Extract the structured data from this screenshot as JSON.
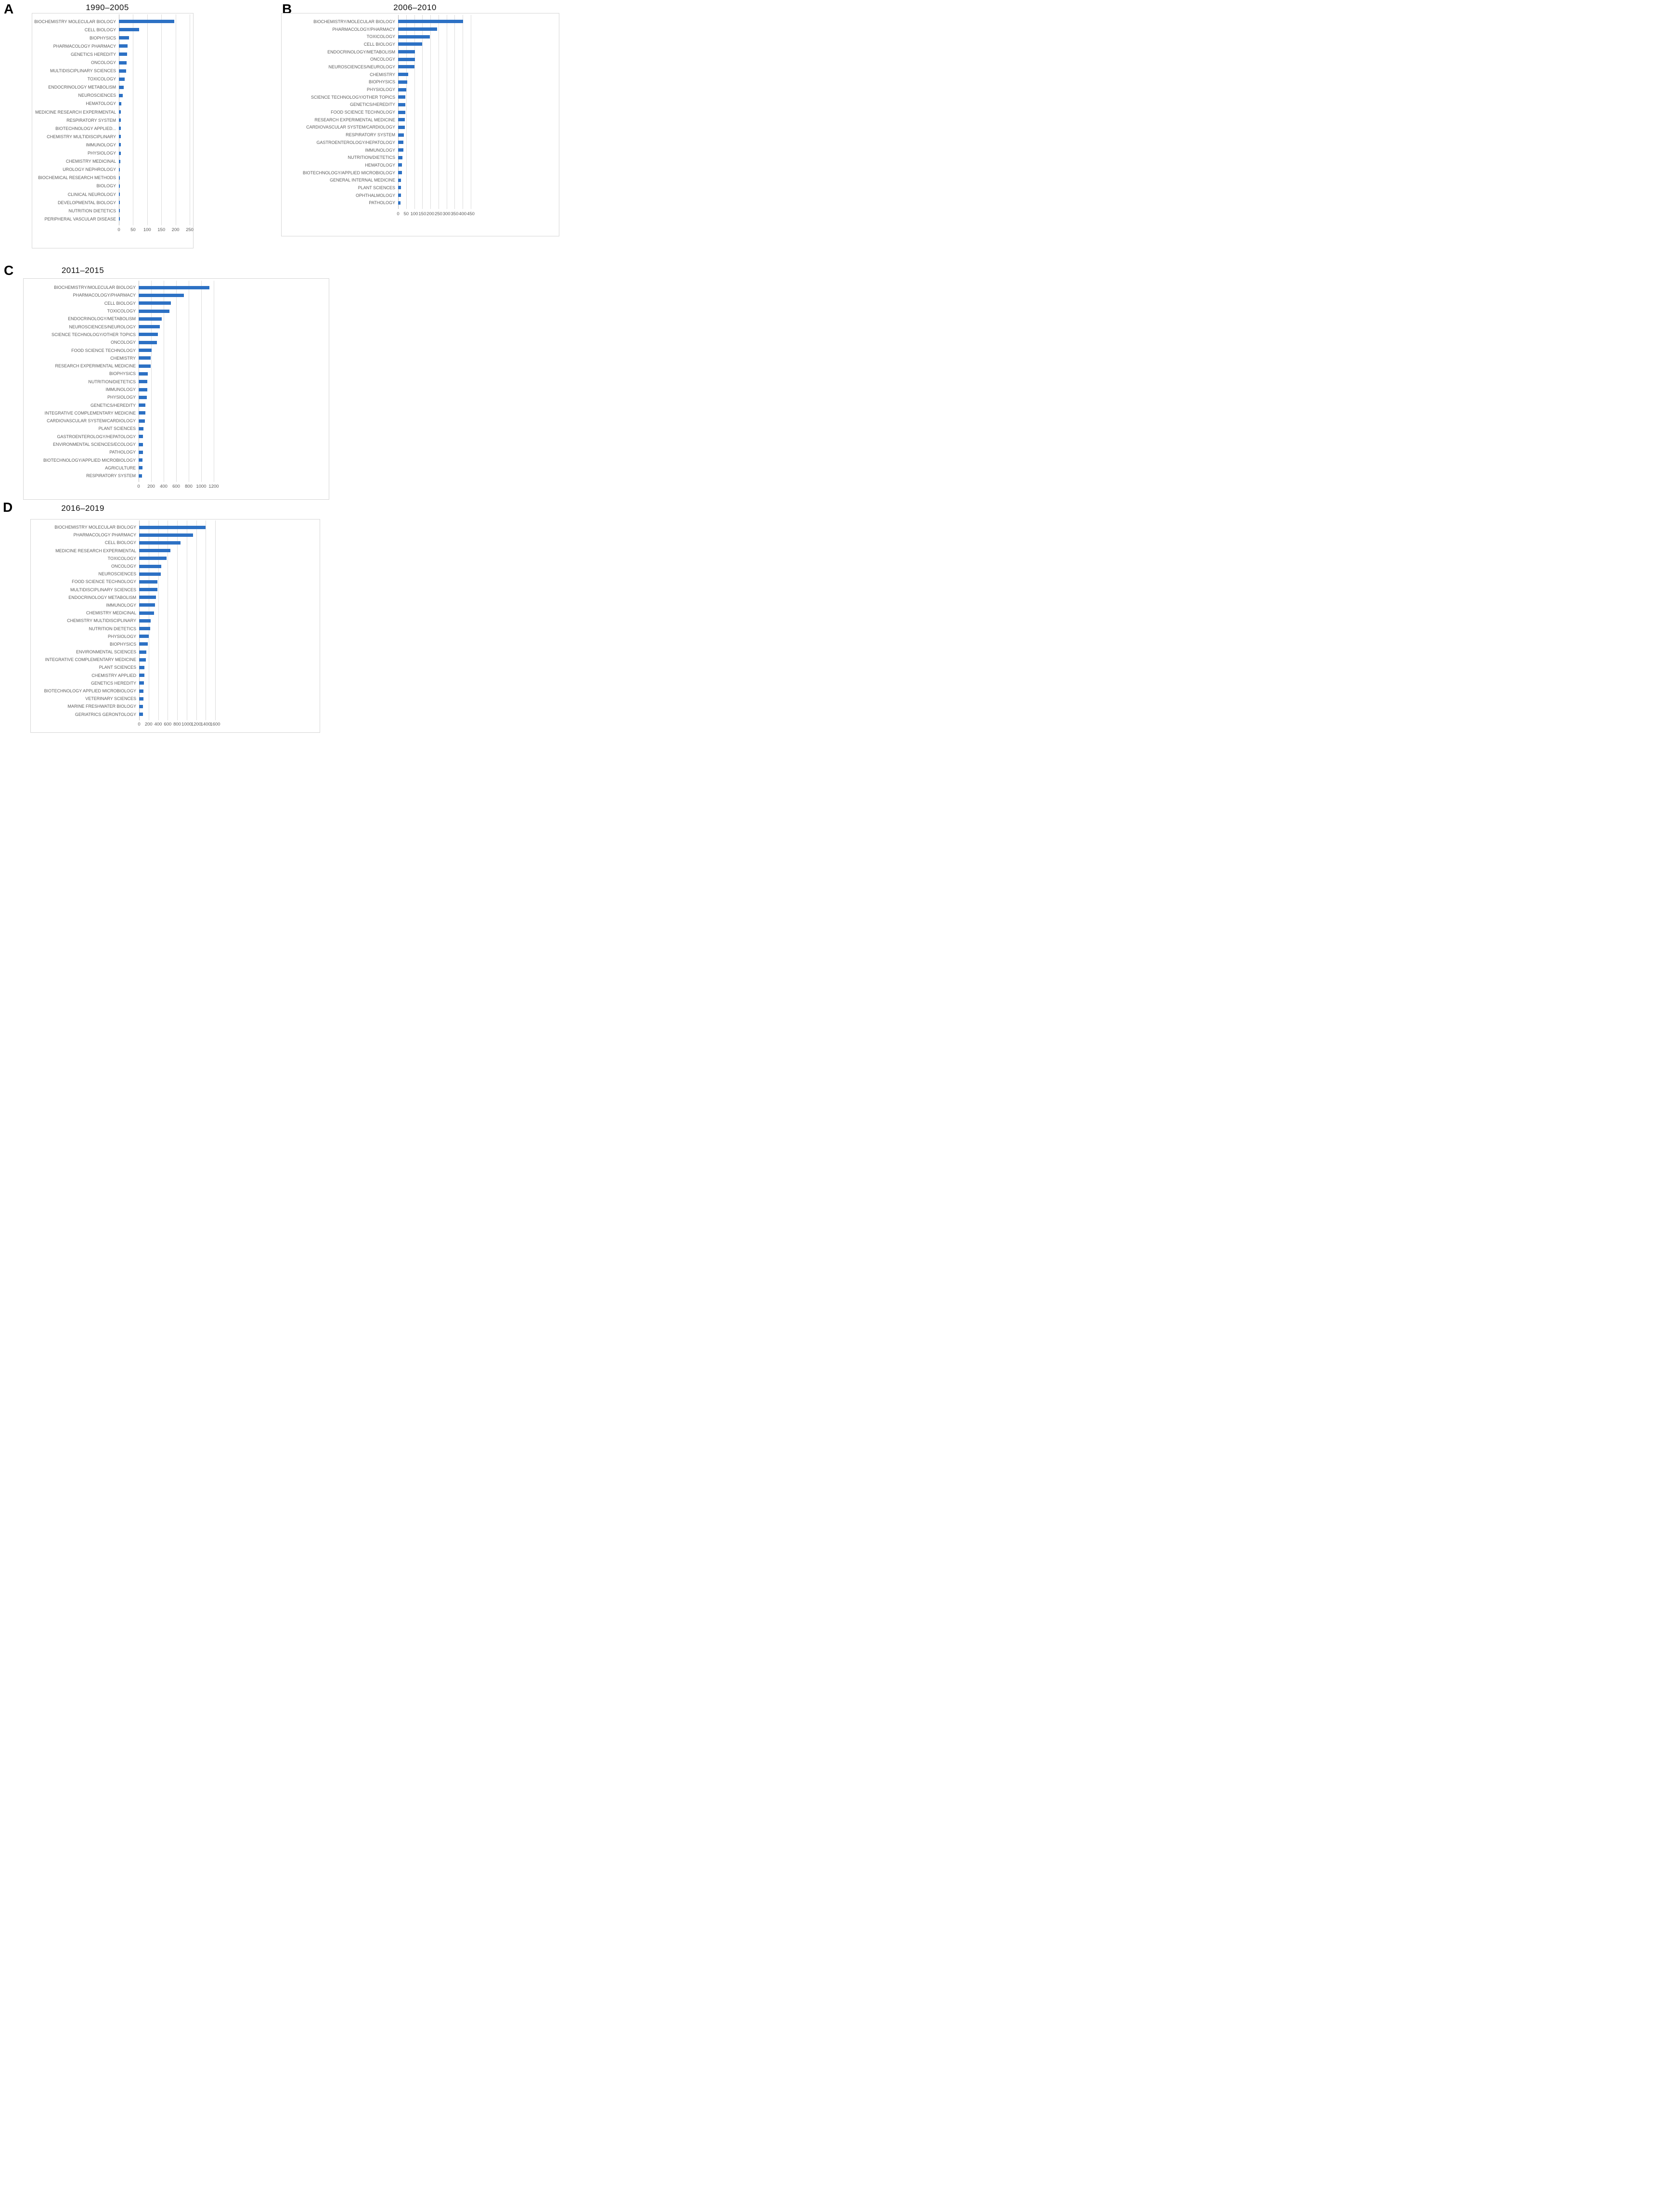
{
  "chart_data": [
    {
      "type": "bar",
      "orientation": "horizontal",
      "panel_label": "A",
      "title": "1990–2005",
      "xlabel": "",
      "ylabel": "",
      "xlim": [
        0,
        250
      ],
      "xticks": [
        0,
        50,
        100,
        150,
        200,
        250
      ],
      "grid": true,
      "legend": "none",
      "bar_color": "#2d71c4",
      "categories": [
        "BIOCHEMISTRY MOLECULAR BIOLOGY",
        "CELL BIOLOGY",
        "BIOPHYSICS",
        "PHARMACOLOGY PHARMACY",
        "GENETICS HEREDITY",
        "ONCOLOGY",
        "MULTIDISCIPLINARY SCIENCES",
        "TOXICOLOGY",
        "ENDOCRINOLOGY METABOLISM",
        "NEUROSCIENCES",
        "HEMATOLOGY",
        "MEDICINE RESEARCH EXPERIMENTAL",
        "RESPIRATORY SYSTEM",
        "BIOTECHNOLOGY APPLIED...",
        "CHEMISTRY MULTIDISCIPLINARY",
        "IMMUNOLOGY",
        "PHYSIOLOGY",
        "CHEMISTRY MEDICINAL",
        "UROLOGY NEPHROLOGY",
        "BIOCHEMICAL RESEARCH METHODS",
        "BIOLOGY",
        "CLINICAL NEUROLOGY",
        "DEVELOPMENTAL BIOLOGY",
        "NUTRITION DIETETICS",
        "PERIPHERAL VASCULAR DISEASE"
      ],
      "values": [
        195,
        72,
        35,
        30,
        29,
        27,
        26,
        20,
        17,
        13,
        8,
        7,
        7,
        6,
        6,
        6,
        6,
        5,
        4,
        3,
        3,
        3,
        3,
        3,
        3
      ]
    },
    {
      "type": "bar",
      "orientation": "horizontal",
      "panel_label": "B",
      "title": "2006–2010",
      "xlabel": "",
      "ylabel": "",
      "xlim": [
        0,
        450
      ],
      "xticks": [
        0,
        50,
        100,
        150,
        200,
        250,
        300,
        350,
        400,
        450
      ],
      "grid": true,
      "legend": "none",
      "bar_color": "#2d71c4",
      "categories": [
        "BIOCHEMISTRY/MOLECULAR BIOLOGY",
        "PHARMACOLOGY/PHARMACY",
        "TOXICOLOGY",
        "CELL BIOLOGY",
        "ENDOCRINOLOGY/METABOLISM",
        "ONCOLOGY",
        "NEUROSCIENCES/NEUROLOGY",
        "CHEMISTRY",
        "BIOPHYSICS",
        "PHYSIOLOGY",
        "SCIENCE TECHNOLOGY/OTHER TOPICS",
        "GENETICS/HEREDITY",
        "FOOD SCIENCE TECHNOLOGY",
        "RESEARCH EXPERIMENTAL MEDICINE",
        "CARDIOVASCULAR SYSTEM/CARDIOLOGY",
        "RESPIRATORY SYSTEM",
        "GASTROENTEROLOGY/HEPATOLOGY",
        "IMMUNOLOGY",
        "NUTRITION/DIETETICS",
        "HEMATOLOGY",
        "BIOTECHNOLOGY/APPLIED MICROBIOLOGY",
        "GENERAL INTERNAL MEDICINE",
        "PLANT SCIENCES",
        "OPHTHALMOLOGY",
        "PATHOLOGY"
      ],
      "values": [
        403,
        240,
        196,
        149,
        104,
        103,
        100,
        62,
        58,
        51,
        46,
        45,
        44,
        42,
        41,
        37,
        34,
        32,
        28,
        25,
        23,
        18,
        17,
        17,
        15
      ]
    },
    {
      "type": "bar",
      "orientation": "horizontal",
      "panel_label": "C",
      "title": "2011–2015",
      "xlabel": "",
      "ylabel": "",
      "xlim": [
        0,
        1200
      ],
      "xticks": [
        0,
        200,
        400,
        600,
        800,
        1000,
        1200
      ],
      "grid": true,
      "legend": "none",
      "bar_color": "#2d71c4",
      "categories": [
        "BIOCHEMISTRY/MOLECULAR BIOLOGY",
        "PHARMACOLOGY/PHARMACY",
        "CELL BIOLOGY",
        "TOXICOLOGY",
        "ENDOCRINOLOGY/METABOLISM",
        "NEUROSCIENCES/NEUROLOGY",
        "SCIENCE TECHNOLOGY/OTHER TOPICS",
        "ONCOLOGY",
        "FOOD SCIENCE TECHNOLOGY",
        "CHEMISTRY",
        "RESEARCH EXPERIMENTAL MEDICINE",
        "BIOPHYSICS",
        "NUTRITION/DIETETICS",
        "IMMUNOLOGY",
        "PHYSIOLOGY",
        "GENETICS/HEREDITY",
        "INTEGRATIVE COMPLEMENTARY MEDICINE",
        "CARDIOVASCULAR SYSTEM/CARDIOLOGY",
        "PLANT SCIENCES",
        "GASTROENTEROLOGY/HEPATOLOGY",
        "ENVIRONMENTAL SCIENCES/ECOLOGY",
        "PATHOLOGY",
        "BIOTECHNOLOGY/APPLIED MICROBIOLOGY",
        "AGRICULTURE",
        "RESPIRATORY SYSTEM"
      ],
      "values": [
        1130,
        720,
        515,
        495,
        370,
        340,
        305,
        290,
        210,
        195,
        190,
        145,
        141,
        140,
        130,
        110,
        105,
        100,
        80,
        72,
        70,
        67,
        62,
        58,
        52
      ]
    },
    {
      "type": "bar",
      "orientation": "horizontal",
      "panel_label": "D",
      "title": "2016–2019",
      "xlabel": "",
      "ylabel": "",
      "xlim": [
        0,
        1600
      ],
      "xticks": [
        0,
        200,
        400,
        600,
        800,
        1000,
        1200,
        1400,
        1600
      ],
      "grid": true,
      "legend": "none",
      "bar_color": "#2d71c4",
      "categories": [
        "BIOCHEMISTRY MOLECULAR BIOLOGY",
        "PHARMACOLOGY PHARMACY",
        "CELL BIOLOGY",
        "MEDICINE RESEARCH EXPERIMENTAL",
        "TOXICOLOGY",
        "ONCOLOGY",
        "NEUROSCIENCES",
        "FOOD SCIENCE TECHNOLOGY",
        "MULTIDISCIPLINARY SCIENCES",
        "ENDOCRINOLOGY METABOLISM",
        "IMMUNOLOGY",
        "CHEMISTRY MEDICINAL",
        "CHEMISTRY MULTIDISCIPLINARY",
        "NUTRITION DIETETICS",
        "PHYSIOLOGY",
        "BIOPHYSICS",
        "ENVIRONMENTAL SCIENCES",
        "INTEGRATIVE COMPLEMENTARY MEDICINE",
        "PLANT SCIENCES",
        "CHEMISTRY APPLIED",
        "GENETICS HEREDITY",
        "BIOTECHNOLOGY APPLIED MICROBIOLOGY",
        "VETERINARY SCIENCES",
        "MARINE FRESHWATER BIOLOGY",
        "GERIATRICS GERONTOLOGY"
      ],
      "values": [
        1400,
        1130,
        870,
        660,
        580,
        470,
        455,
        382,
        380,
        355,
        335,
        310,
        240,
        235,
        200,
        180,
        147,
        146,
        111,
        107,
        102,
        92,
        88,
        79,
        78
      ]
    }
  ]
}
